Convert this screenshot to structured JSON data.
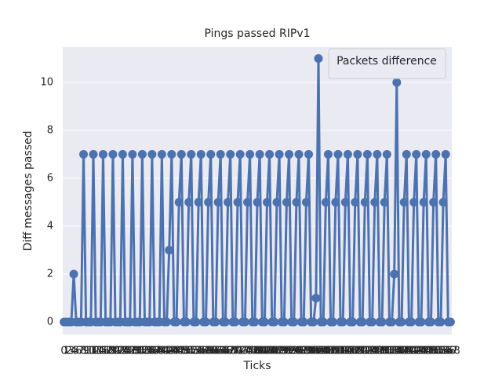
{
  "chart_data": {
    "type": "line",
    "title": "Pings passed RIPv1",
    "x_label": "Ticks",
    "y_label": "Diff messages passed",
    "categories": [
      0,
      1,
      2,
      3,
      4,
      5,
      6,
      7,
      8,
      9,
      10,
      11,
      12,
      13,
      14,
      15,
      16,
      17,
      18,
      19,
      20,
      21,
      22,
      23,
      24,
      25,
      26,
      27,
      28,
      29,
      30,
      31,
      32,
      33,
      34,
      35,
      36,
      37,
      38,
      39,
      40,
      41,
      42,
      43,
      44,
      45,
      46,
      47,
      48,
      49,
      50,
      51,
      52,
      53,
      54,
      55,
      56,
      57,
      58,
      59,
      60,
      61,
      62,
      63,
      64,
      65,
      66,
      67,
      68,
      69,
      70,
      71,
      72,
      73,
      74,
      75,
      76,
      77,
      78,
      79,
      80,
      81,
      82,
      83,
      84,
      85,
      86,
      87,
      88,
      89,
      90,
      91,
      92,
      93,
      94,
      95,
      96,
      97,
      98,
      99,
      100,
      101,
      102,
      103,
      104,
      105,
      106,
      107,
      108,
      109,
      110,
      111,
      112,
      113,
      114,
      115,
      116,
      117,
      118,
      119,
      120,
      121,
      122,
      123,
      124,
      125,
      126,
      127,
      128,
      129,
      130,
      131,
      132,
      133,
      134,
      135,
      136,
      137,
      138,
      139,
      140,
      141,
      142,
      143,
      144,
      145,
      146,
      147,
      148,
      149,
      150,
      151,
      152,
      153,
      154,
      155,
      156,
      157,
      158
    ],
    "series": [
      {
        "name": "Packets difference",
        "color": "#4c72b0",
        "values": [
          0,
          0,
          0,
          0,
          2,
          0,
          0,
          0,
          7,
          0,
          0,
          0,
          7,
          0,
          0,
          0,
          7,
          0,
          0,
          0,
          7,
          0,
          0,
          0,
          7,
          0,
          0,
          0,
          7,
          0,
          0,
          0,
          7,
          0,
          0,
          0,
          7,
          0,
          0,
          0,
          7,
          0,
          0,
          3,
          7,
          0,
          0,
          5,
          7,
          0,
          0,
          5,
          7,
          0,
          0,
          5,
          7,
          0,
          0,
          5,
          7,
          0,
          0,
          5,
          7,
          0,
          0,
          5,
          7,
          0,
          0,
          5,
          7,
          0,
          0,
          5,
          7,
          0,
          0,
          5,
          7,
          0,
          0,
          5,
          7,
          0,
          0,
          5,
          7,
          0,
          0,
          5,
          7,
          0,
          0,
          5,
          7,
          0,
          0,
          5,
          7,
          0,
          0,
          1,
          11,
          0,
          0,
          5,
          7,
          0,
          0,
          5,
          7,
          0,
          0,
          5,
          7,
          0,
          0,
          5,
          7,
          0,
          0,
          5,
          7,
          0,
          0,
          5,
          7,
          0,
          0,
          5,
          7,
          0,
          0,
          2,
          10,
          0,
          0,
          5,
          7,
          0,
          0,
          5,
          7,
          0,
          0,
          5,
          7,
          0,
          0,
          5,
          7,
          0,
          0,
          5,
          7,
          0,
          0
        ]
      }
    ],
    "ylim": [
      -0.525,
      11.475
    ],
    "yticks": [
      0,
      2,
      4,
      6,
      8,
      10
    ],
    "grid": true,
    "legend": "upper right"
  }
}
